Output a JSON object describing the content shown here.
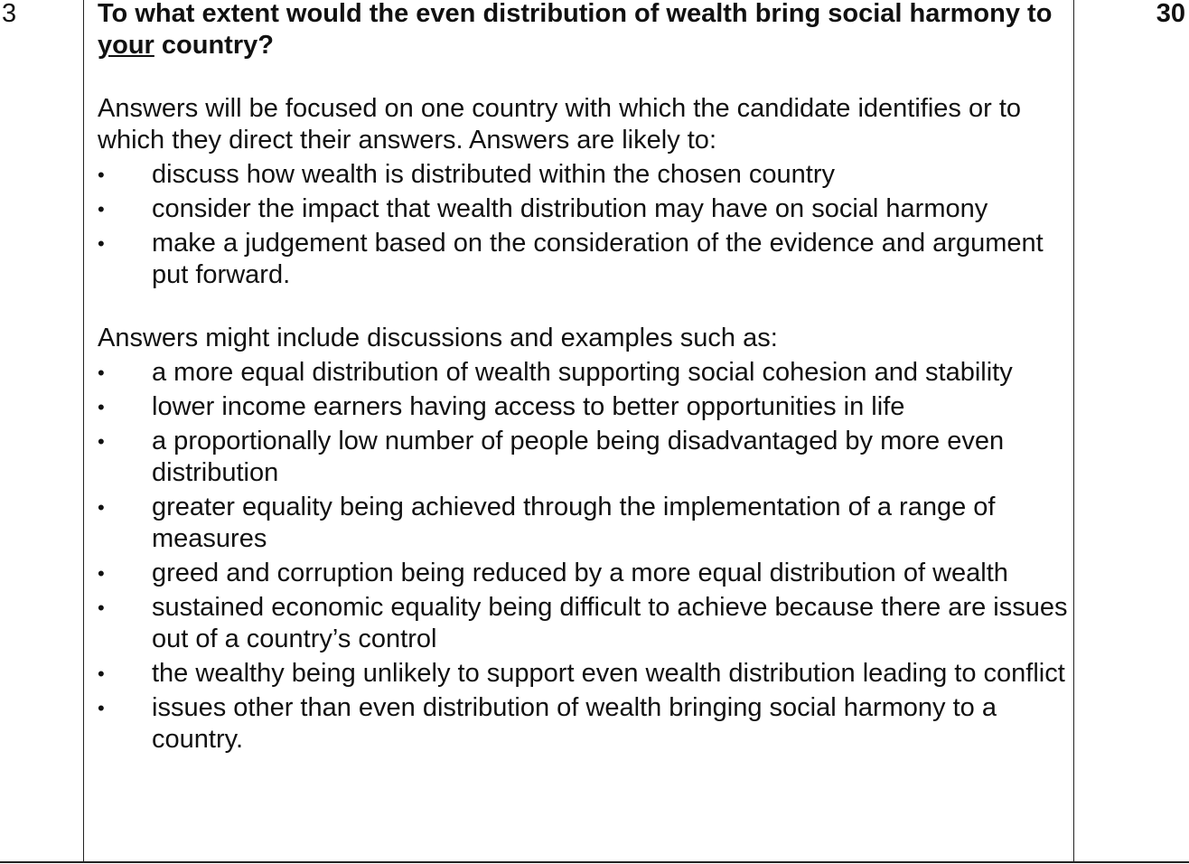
{
  "question_number": "3",
  "marks": "30",
  "question": {
    "part1": "To what extent would the even distribution of wealth bring social harmony to ",
    "underlined": "your",
    "part2": " country?"
  },
  "intro": "Answers will be focused on one country with which the candidate identifies or to which they direct their answers. Answers are likely to:",
  "likely_points": [
    "discuss how wealth is distributed within the chosen country",
    "consider the impact that wealth distribution may have on social harmony",
    "make a judgement based on the consideration of the evidence and argument put forward."
  ],
  "examples_intro": "Answers might include discussions and examples such as:",
  "example_points": [
    "a more equal distribution of wealth supporting social cohesion and stability",
    "lower income earners having access to better opportunities in life",
    "a proportionally low number of people being disadvantaged by more even distribution",
    "greater equality being achieved through the implementation of a range of measures",
    "greed and corruption being reduced by a more equal distribution of wealth",
    "sustained economic equality being difficult to achieve because there are issues out of a country’s control",
    "the wealthy being unlikely to support even wealth distribution leading to conflict",
    "issues other than even distribution of wealth bringing social harmony to a country."
  ],
  "bullet_glyph": "•"
}
